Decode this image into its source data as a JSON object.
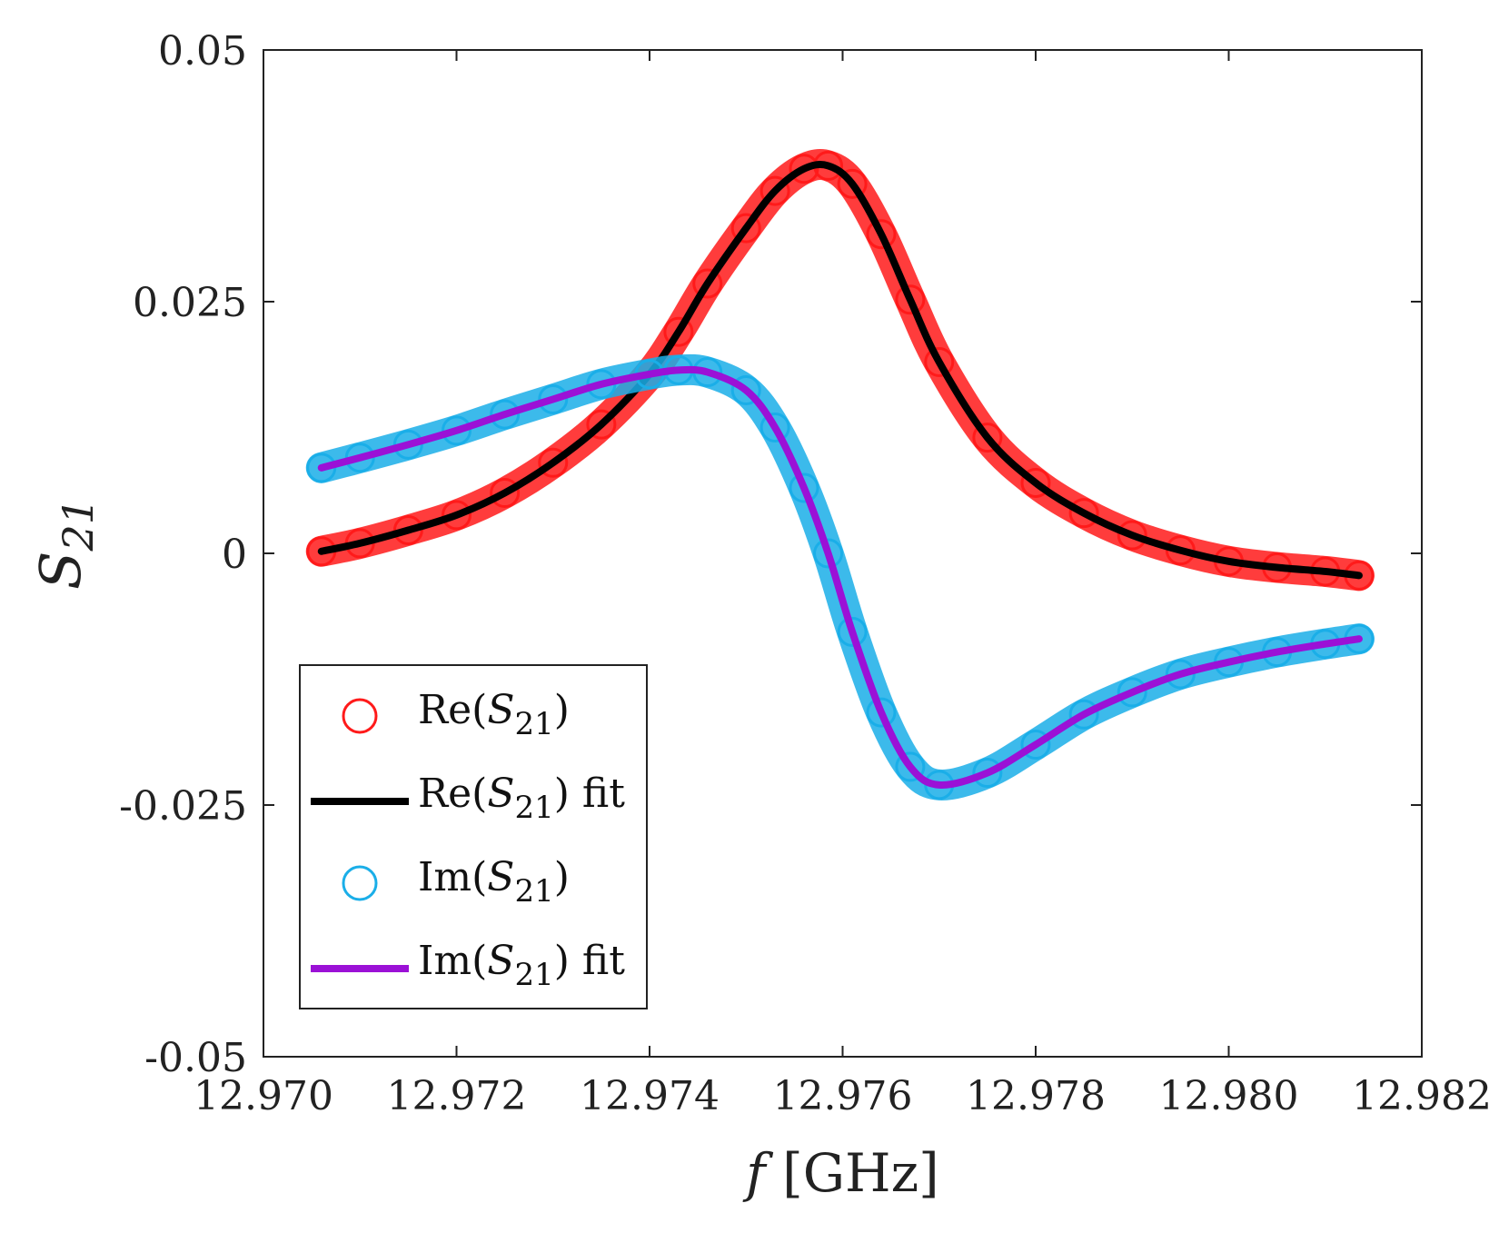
{
  "chart_data": {
    "type": "scatter",
    "title": "",
    "xlabel": {
      "italic": "f",
      "rest": " [GHz]"
    },
    "ylabel": {
      "base": "S",
      "sub": "21"
    },
    "xlim": [
      12.97,
      12.982
    ],
    "ylim": [
      -0.05,
      0.05
    ],
    "xticks": [
      "12.970",
      "12.972",
      "12.974",
      "12.976",
      "12.978",
      "12.980",
      "12.982"
    ],
    "yticks": [
      "0.05",
      "0.025",
      "0",
      "-0.025",
      "-0.05"
    ],
    "xtick_values": [
      12.97,
      12.972,
      12.974,
      12.976,
      12.978,
      12.98,
      12.982
    ],
    "ytick_values": [
      0.05,
      0.025,
      0,
      -0.025,
      -0.05
    ],
    "legend_position": "bottom-left",
    "resonance": {
      "f0": 12.97585,
      "gamma_ghz": 0.00118,
      "x_start": 12.97055,
      "x_end": 12.98135
    },
    "series": [
      {
        "name": "Re(S21)",
        "legend": {
          "prefix": "Re(",
          "base": "S",
          "sub": "21",
          "suffix": ")"
        },
        "style": "markers",
        "color": "#ff1a1a",
        "x": [
          12.9706,
          12.971,
          12.9715,
          12.972,
          12.9725,
          12.973,
          12.9735,
          12.974,
          12.9743,
          12.9746,
          12.975,
          12.9753,
          12.9756,
          12.97585,
          12.9761,
          12.9764,
          12.9767,
          12.977,
          12.9775,
          12.978,
          12.9785,
          12.979,
          12.9795,
          12.98,
          12.9805,
          12.981,
          12.98135
        ],
        "values": [
          0.0002,
          0.001,
          0.0023,
          0.0038,
          0.006,
          0.009,
          0.0128,
          0.0178,
          0.022,
          0.0268,
          0.0323,
          0.036,
          0.0382,
          0.0385,
          0.0367,
          0.0317,
          0.0252,
          0.019,
          0.0115,
          0.007,
          0.004,
          0.0018,
          0.0003,
          -0.0008,
          -0.0014,
          -0.0018,
          -0.0022
        ]
      },
      {
        "name": "Re(S21) fit",
        "legend": {
          "prefix": "Re(",
          "base": "S",
          "sub": "21",
          "suffix": ") fit"
        },
        "style": "line",
        "color": "#000000",
        "x": [
          12.9706,
          12.971,
          12.9715,
          12.972,
          12.9725,
          12.973,
          12.9735,
          12.974,
          12.9743,
          12.9746,
          12.975,
          12.9753,
          12.9756,
          12.97585,
          12.9761,
          12.9764,
          12.9767,
          12.977,
          12.9775,
          12.978,
          12.9785,
          12.979,
          12.9795,
          12.98,
          12.9805,
          12.981,
          12.98135
        ],
        "values": [
          0.0002,
          0.001,
          0.0023,
          0.0038,
          0.006,
          0.009,
          0.0128,
          0.0178,
          0.022,
          0.0268,
          0.0323,
          0.036,
          0.0382,
          0.0385,
          0.0367,
          0.0317,
          0.0252,
          0.019,
          0.0115,
          0.007,
          0.004,
          0.0018,
          0.0003,
          -0.0008,
          -0.0014,
          -0.0018,
          -0.0022
        ]
      },
      {
        "name": "Im(S21)",
        "legend": {
          "prefix": "Im(",
          "base": "S",
          "sub": "21",
          "suffix": ")"
        },
        "style": "markers",
        "color": "#1aaee8",
        "x": [
          12.9706,
          12.971,
          12.9715,
          12.972,
          12.9725,
          12.973,
          12.9735,
          12.974,
          12.9743,
          12.9746,
          12.975,
          12.9753,
          12.9756,
          12.97585,
          12.9761,
          12.9764,
          12.9767,
          12.977,
          12.9775,
          12.978,
          12.9785,
          12.979,
          12.9795,
          12.98,
          12.9805,
          12.981,
          12.98135
        ],
        "values": [
          0.0085,
          0.0095,
          0.0108,
          0.0122,
          0.0138,
          0.0153,
          0.0168,
          0.0178,
          0.0182,
          0.018,
          0.0162,
          0.0125,
          0.0065,
          0.0,
          -0.0078,
          -0.0158,
          -0.0212,
          -0.023,
          -0.0218,
          -0.019,
          -0.016,
          -0.0138,
          -0.012,
          -0.0108,
          -0.0098,
          -0.009,
          -0.0085
        ]
      },
      {
        "name": "Im(S21) fit",
        "legend": {
          "prefix": "Im(",
          "base": "S",
          "sub": "21",
          "suffix": ") fit"
        },
        "style": "line",
        "color": "#9b11d6",
        "x": [
          12.9706,
          12.971,
          12.9715,
          12.972,
          12.9725,
          12.973,
          12.9735,
          12.974,
          12.9743,
          12.9746,
          12.975,
          12.9753,
          12.9756,
          12.97585,
          12.9761,
          12.9764,
          12.9767,
          12.977,
          12.9775,
          12.978,
          12.9785,
          12.979,
          12.9795,
          12.98,
          12.9805,
          12.981,
          12.98135
        ],
        "values": [
          0.0085,
          0.0095,
          0.0108,
          0.0122,
          0.0138,
          0.0153,
          0.0168,
          0.0178,
          0.0182,
          0.018,
          0.0162,
          0.0125,
          0.0065,
          0.0,
          -0.0078,
          -0.0158,
          -0.0212,
          -0.023,
          -0.0218,
          -0.019,
          -0.016,
          -0.0138,
          -0.012,
          -0.0108,
          -0.0098,
          -0.009,
          -0.0085
        ]
      }
    ]
  }
}
